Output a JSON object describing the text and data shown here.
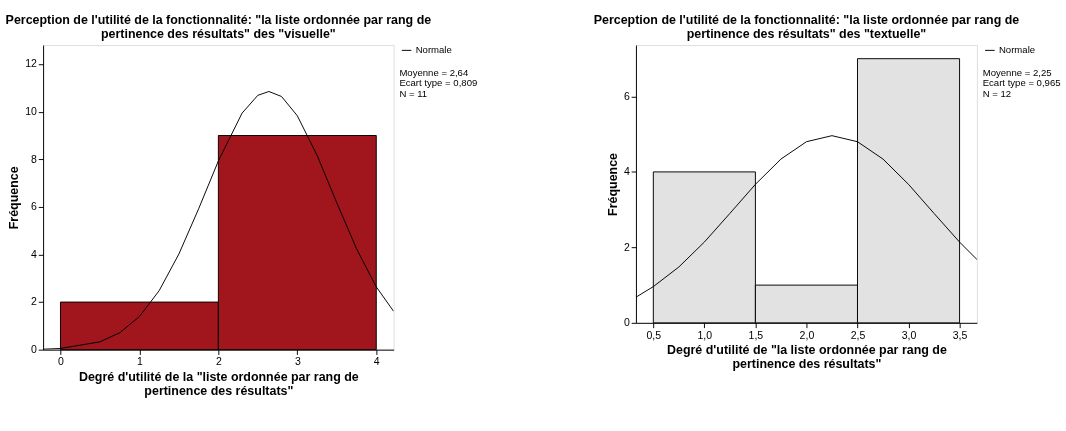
{
  "chart_data": [
    {
      "type": "histogram",
      "title": "Perception de l'utilité de la fonctionnalité: \"la liste ordonnée par rang de\npertinence des résultats\" des \"visuelle\"",
      "xlabel": "Degré d'utilité de la \"liste ordonnée par rang de\npertinence des résultats\"",
      "ylabel": "Fréquence",
      "bins": [
        0,
        2,
        4
      ],
      "values": [
        2,
        9
      ],
      "color": "#a0161c",
      "xlim": [
        -0.22,
        4.22
      ],
      "ylim": [
        0,
        12.8
      ],
      "xticks": [
        0,
        1,
        2,
        3,
        4
      ],
      "yticks": [
        0,
        2,
        4,
        6,
        8,
        10,
        12
      ],
      "grid": false,
      "legend": "top right",
      "series": [
        {
          "type": "line",
          "name": "Normale",
          "color": "#000000",
          "x": [
            -0.22,
            0,
            0.5,
            0.75,
            1,
            1.25,
            1.5,
            1.75,
            2,
            2.3,
            2.5,
            2.64,
            2.8,
            3,
            3.25,
            3.5,
            3.75,
            4,
            4.22
          ],
          "values": [
            0.02,
            0.05,
            0.33,
            0.71,
            1.39,
            2.48,
            4.02,
            5.92,
            7.93,
            9.94,
            10.69,
            10.85,
            10.64,
            9.83,
            8.17,
            6.17,
            4.24,
            2.64,
            1.61
          ]
        }
      ],
      "annotations": [
        "Moyenne = 2,64",
        "Ecart type = 0,809",
        "N = 11"
      ]
    },
    {
      "type": "histogram",
      "title": "Perception de l'utilité de la fonctionnalité: \"la liste ordonnée par rang de\npertinence des résultats\" des \"textuelle\"",
      "xlabel": "Degré d'utilité de \"la liste ordonnée par rang de\npertinence des résultats\"",
      "ylabel": "Fréquence",
      "bins": [
        0.5,
        1.5,
        2.5,
        3.5
      ],
      "values": [
        4,
        1,
        7
      ],
      "color": "#e2e2e2",
      "xlim": [
        0.33,
        3.67
      ],
      "ylim": [
        0,
        7.36
      ],
      "xticks": [
        {
          "value": 0.5,
          "label": "0,5"
        },
        {
          "value": 1.0,
          "label": "1,0"
        },
        {
          "value": 1.5,
          "label": "1,5"
        },
        {
          "value": 2.0,
          "label": "2,0"
        },
        {
          "value": 2.5,
          "label": "2,5"
        },
        {
          "value": 3.0,
          "label": "3,0"
        },
        {
          "value": 3.5,
          "label": "3,5"
        }
      ],
      "yticks": [
        0,
        2,
        4,
        6
      ],
      "grid": false,
      "legend": "top right",
      "series": [
        {
          "type": "line",
          "name": "Normale",
          "color": "#000000",
          "x": [
            0.33,
            0.5,
            0.75,
            1,
            1.25,
            1.5,
            1.75,
            2,
            2.25,
            2.5,
            2.75,
            3,
            3.25,
            3.5,
            3.67
          ],
          "values": [
            0.68,
            0.96,
            1.48,
            2.14,
            2.9,
            3.67,
            4.34,
            4.8,
            4.96,
            4.8,
            4.34,
            3.67,
            2.9,
            2.14,
            1.68
          ]
        }
      ],
      "annotations": [
        "Moyenne = 2,25",
        "Ecart type = 0,965",
        "N = 12"
      ]
    }
  ]
}
